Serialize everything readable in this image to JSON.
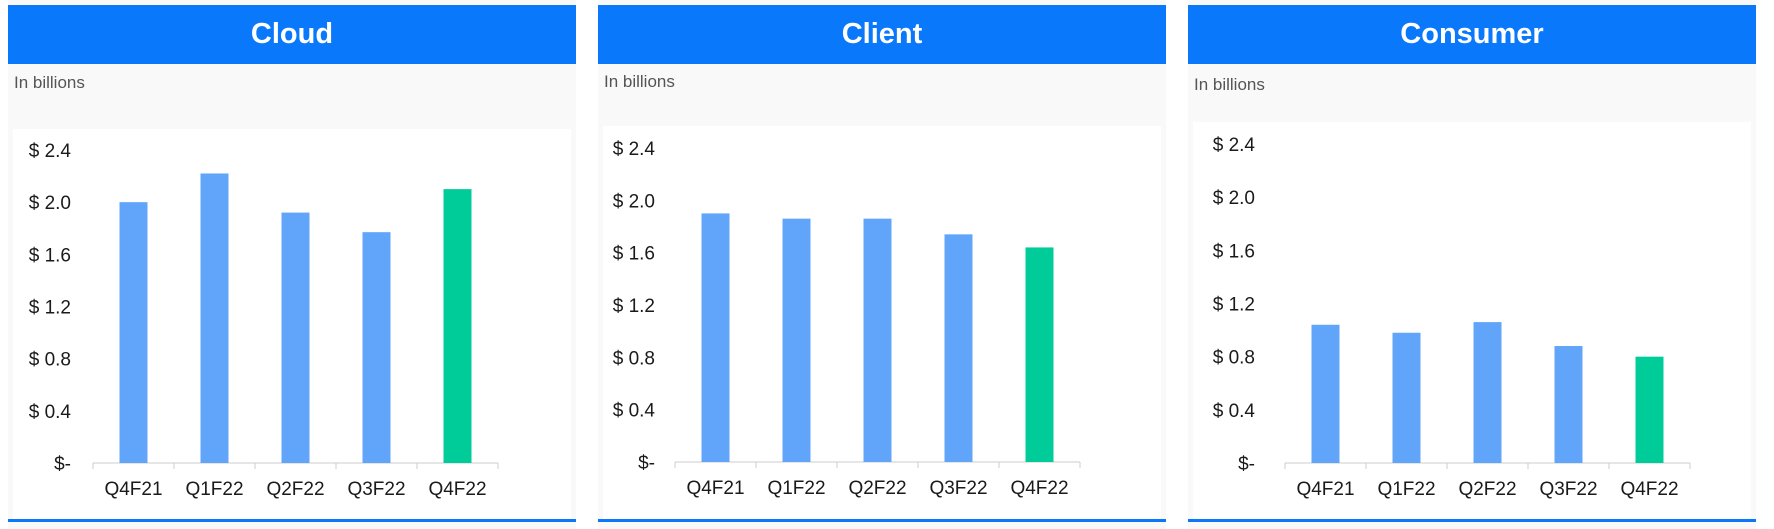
{
  "colors": {
    "header": "#0a78fb",
    "bar": "#60a5fa",
    "highlight_bar": "#00cc99",
    "axis": "#cccccc"
  },
  "chart_data": [
    {
      "type": "bar",
      "title": "Cloud",
      "subtitle": "In billions",
      "categories": [
        "Q4F21",
        "Q1F22",
        "Q2F22",
        "Q3F22",
        "Q4F22"
      ],
      "values": [
        2.0,
        2.22,
        1.92,
        1.77,
        2.1
      ],
      "highlight_index": 4,
      "ylim": [
        0,
        2.4
      ],
      "yticks": [
        0,
        0.4,
        0.8,
        1.2,
        1.6,
        2.0,
        2.4
      ],
      "ytick_labels": [
        "$-",
        "$ 0.4",
        "$ 0.8",
        "$ 1.2",
        "$ 1.6",
        "$ 2.0",
        "$ 2.4"
      ],
      "grid": false
    },
    {
      "type": "bar",
      "title": "Client",
      "subtitle": "In billions",
      "categories": [
        "Q4F21",
        "Q1F22",
        "Q2F22",
        "Q3F22",
        "Q4F22"
      ],
      "values": [
        1.9,
        1.86,
        1.86,
        1.74,
        1.64
      ],
      "highlight_index": 4,
      "ylim": [
        0,
        2.4
      ],
      "yticks": [
        0,
        0.4,
        0.8,
        1.2,
        1.6,
        2.0,
        2.4
      ],
      "ytick_labels": [
        "$-",
        "$ 0.4",
        "$ 0.8",
        "$ 1.2",
        "$ 1.6",
        "$ 2.0",
        "$ 2.4"
      ],
      "grid": false
    },
    {
      "type": "bar",
      "title": "Consumer",
      "subtitle": "In billions",
      "categories": [
        "Q4F21",
        "Q1F22",
        "Q2F22",
        "Q3F22",
        "Q4F22"
      ],
      "values": [
        1.04,
        0.98,
        1.06,
        0.88,
        0.8
      ],
      "highlight_index": 4,
      "ylim": [
        0,
        2.4
      ],
      "yticks": [
        0,
        0.4,
        0.8,
        1.2,
        1.6,
        2.0,
        2.4
      ],
      "ytick_labels": [
        "$-",
        "$ 0.4",
        "$ 0.8",
        "$ 1.2",
        "$ 1.6",
        "$ 2.0",
        "$ 2.4"
      ],
      "grid": false
    }
  ]
}
